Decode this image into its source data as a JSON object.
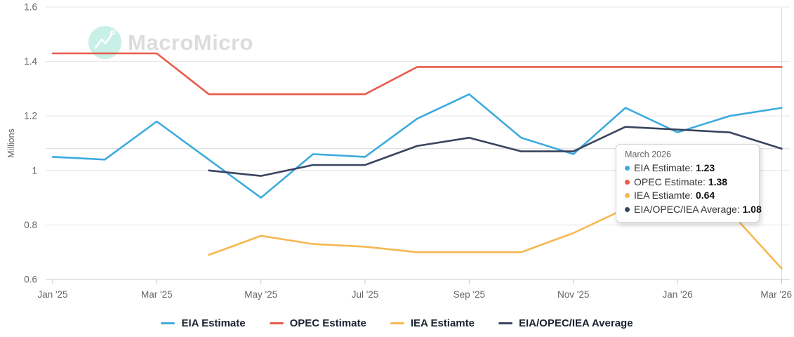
{
  "watermark": {
    "brand": "MacroMicro"
  },
  "tooltip": {
    "title": "March 2026",
    "rows": [
      {
        "label": "EIA Estimate",
        "value": "1.23",
        "color": "#3dabde"
      },
      {
        "label": "OPEC Estimate",
        "value": "1.38",
        "color": "#e85c4a"
      },
      {
        "label": "IEA Estiamte",
        "value": "0.64",
        "color": "#f5b850"
      },
      {
        "label": "EIA/OPEC/IEA Average",
        "value": "1.08",
        "color": "#3a4460"
      }
    ]
  },
  "legend": {
    "items": [
      {
        "label": "EIA Estimate",
        "color": "#3dabde"
      },
      {
        "label": "OPEC Estimate",
        "color": "#e85c4a"
      },
      {
        "label": "IEA Estiamte",
        "color": "#f5b850"
      },
      {
        "label": "EIA/OPEC/IEA Average",
        "color": "#3a4460"
      }
    ]
  },
  "chart_data": {
    "type": "line",
    "title": "",
    "ylabel": "Millions",
    "ylim": [
      0.6,
      1.6
    ],
    "grid": true,
    "legend_position": "bottom",
    "y_ticks": [
      {
        "value": 0.6,
        "label": "0.6"
      },
      {
        "value": 0.8,
        "label": "0.8"
      },
      {
        "value": 1.0,
        "label": "1"
      },
      {
        "value": 1.2,
        "label": "1.2"
      },
      {
        "value": 1.4,
        "label": "1.4"
      },
      {
        "value": 1.6,
        "label": "1.6"
      }
    ],
    "categories": [
      "Jan '25",
      "Feb '25",
      "Mar '25",
      "Apr '25",
      "May '25",
      "Jun '25",
      "Jul '25",
      "Aug '25",
      "Sep '25",
      "Oct '25",
      "Nov '25",
      "Dec '25",
      "Jan '26",
      "Feb '26",
      "Mar '26"
    ],
    "x_tick_labels": [
      "Jan '25",
      "Mar '25",
      "May '25",
      "Jul '25",
      "Sep '25",
      "Nov '25",
      "Jan '26",
      "Mar '26"
    ],
    "series": [
      {
        "name": "EIA Estimate",
        "color": "#3dabde",
        "values": [
          1.05,
          1.04,
          1.18,
          1.04,
          0.9,
          1.06,
          1.05,
          1.19,
          1.28,
          1.12,
          1.06,
          1.23,
          1.14,
          1.2,
          1.23
        ]
      },
      {
        "name": "OPEC Estimate",
        "color": "#e85c4a",
        "values": [
          1.43,
          1.43,
          1.43,
          1.28,
          1.28,
          1.28,
          1.28,
          1.38,
          1.38,
          1.38,
          1.38,
          1.38,
          1.38,
          1.38,
          1.38
        ]
      },
      {
        "name": "IEA Estiamte",
        "color": "#f5b850",
        "values": [
          null,
          null,
          null,
          0.69,
          0.76,
          0.73,
          0.72,
          0.7,
          0.7,
          0.7,
          0.77,
          0.86,
          0.93,
          0.85,
          0.64
        ]
      },
      {
        "name": "EIA/OPEC/IEA Average",
        "color": "#3a4460",
        "values": [
          null,
          null,
          null,
          1.0,
          0.98,
          1.02,
          1.02,
          1.09,
          1.12,
          1.07,
          1.07,
          1.16,
          1.15,
          1.14,
          1.08
        ]
      }
    ],
    "crosshair": {
      "category": "Mar '26",
      "y_value": 1.08
    },
    "colors": {
      "grid": "#e4e4e4",
      "axis_line": "#c9c9c9",
      "crosshair": "#d9d9d9",
      "axis_text": "#666666"
    }
  }
}
